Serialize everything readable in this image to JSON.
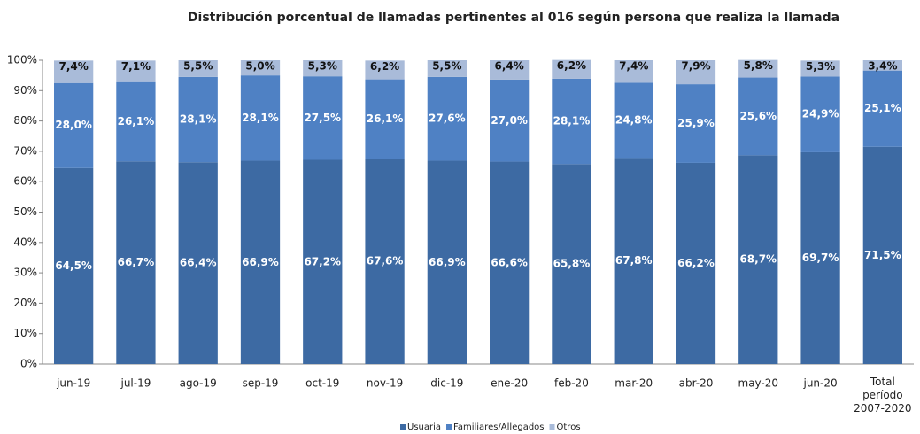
{
  "chart_data": {
    "type": "stacked_bar",
    "title": "Distribución porcentual de llamadas  pertinentes al 016 según persona que  realiza la llamada",
    "categories": [
      "jun-19",
      "jul-19",
      "ago-19",
      "sep-19",
      "oct-19",
      "nov-19",
      "dic-19",
      "ene-20",
      "feb-20",
      "mar-20",
      "abr-20",
      "may-20",
      "jun-20",
      "Total período 2007-2020"
    ],
    "series": [
      {
        "name": "Usuaria",
        "color": "#3d6aa3",
        "values": [
          64.5,
          66.7,
          66.4,
          66.9,
          67.2,
          67.6,
          66.9,
          66.6,
          65.8,
          67.8,
          66.2,
          68.7,
          69.7,
          71.5
        ],
        "value_labels": [
          "64,5%",
          "66,7%",
          "66,4%",
          "66,9%",
          "67,2%",
          "67,6%",
          "66,9%",
          "66,6%",
          "65,8%",
          "67,8%",
          "66,2%",
          "68,7%",
          "69,7%",
          "71,5%"
        ]
      },
      {
        "name": "Familiares/Allegados",
        "color": "#4f81c4",
        "values": [
          28.0,
          26.1,
          28.1,
          28.1,
          27.5,
          26.1,
          27.6,
          27.0,
          28.1,
          24.8,
          25.9,
          25.6,
          24.9,
          25.1
        ],
        "value_labels": [
          "28,0%",
          "26,1%",
          "28,1%",
          "28,1%",
          "27,5%",
          "26,1%",
          "27,6%",
          "27,0%",
          "28,1%",
          "24,8%",
          "25,9%",
          "25,6%",
          "24,9%",
          "25,1%"
        ]
      },
      {
        "name": "Otros",
        "color": "#a9bbd9",
        "values": [
          7.4,
          7.1,
          5.5,
          5.0,
          5.3,
          6.2,
          5.5,
          6.4,
          6.2,
          7.4,
          7.9,
          5.8,
          5.3,
          3.4
        ],
        "value_labels": [
          "7,4%",
          "7,1%",
          "5,5%",
          "5,0%",
          "5,3%",
          "6,2%",
          "5,5%",
          "6,4%",
          "6,2%",
          "7,4%",
          "7,9%",
          "5,8%",
          "5,3%",
          "3,4%"
        ]
      }
    ],
    "ylim": [
      0,
      100
    ],
    "yticks": [
      {
        "value": 0,
        "label": "0%"
      },
      {
        "value": 10,
        "label": "10%"
      },
      {
        "value": 20,
        "label": "20%"
      },
      {
        "value": 30,
        "label": "30%"
      },
      {
        "value": 40,
        "label": "40%"
      },
      {
        "value": 50,
        "label": "50%"
      },
      {
        "value": 60,
        "label": "60%"
      },
      {
        "value": 70,
        "label": "70%"
      },
      {
        "value": 80,
        "label": "80%"
      },
      {
        "value": 90,
        "label": "90%"
      },
      {
        "value": 100,
        "label": "100%"
      }
    ]
  }
}
